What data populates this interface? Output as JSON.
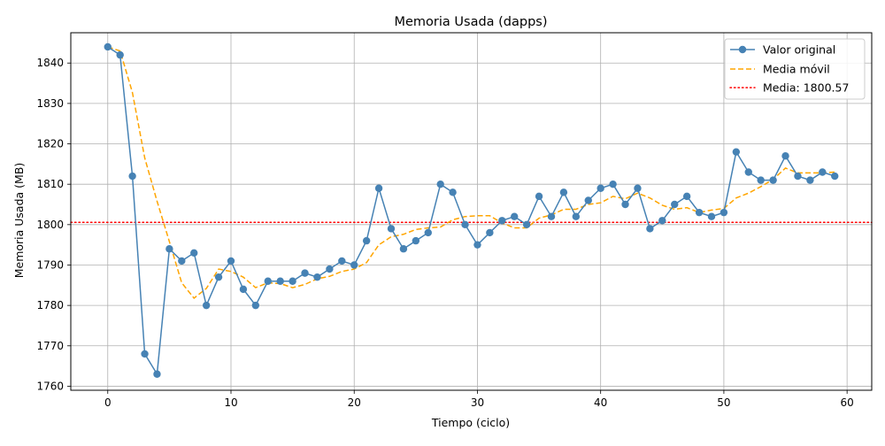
{
  "chart_data": {
    "type": "line",
    "title": "Memoria Usada (dapps)",
    "xlabel": "Tiempo (ciclo)",
    "ylabel": "Memoria Usada (MB)",
    "xlim": [
      -3,
      62
    ],
    "ylim": [
      1759,
      1847.5
    ],
    "xticks": [
      0,
      10,
      20,
      30,
      40,
      50,
      60
    ],
    "yticks": [
      1760,
      1770,
      1780,
      1790,
      1800,
      1810,
      1820,
      1830,
      1840
    ],
    "grid": true,
    "legend_position": "top-right",
    "x": [
      0,
      1,
      2,
      3,
      4,
      5,
      6,
      7,
      8,
      9,
      10,
      11,
      12,
      13,
      14,
      15,
      16,
      17,
      18,
      19,
      20,
      21,
      22,
      23,
      24,
      25,
      26,
      27,
      28,
      29,
      30,
      31,
      32,
      33,
      34,
      35,
      36,
      37,
      38,
      39,
      40,
      41,
      42,
      43,
      44,
      45,
      46,
      47,
      48,
      49,
      50,
      51,
      52,
      53,
      54,
      55,
      56,
      57,
      58,
      59
    ],
    "series": [
      {
        "name": "Valor original",
        "style": "line-marker",
        "color": "#4682b4",
        "values": [
          1844,
          1842,
          1812,
          1768,
          1763,
          1794,
          1791,
          1793,
          1780,
          1787,
          1791,
          1784,
          1780,
          1786,
          1786,
          1786,
          1788,
          1787,
          1789,
          1791,
          1790,
          1796,
          1809,
          1799,
          1794,
          1796,
          1798,
          1810,
          1808,
          1800,
          1795,
          1798,
          1801,
          1802,
          1800,
          1807,
          1802,
          1808,
          1802,
          1806,
          1809,
          1810,
          1805,
          1809,
          1799,
          1801,
          1805,
          1807,
          1803,
          1802,
          1803,
          1818,
          1813,
          1811,
          1811,
          1817,
          1812,
          1811,
          1813,
          1812
        ]
      },
      {
        "name": "Media móvil",
        "style": "dashed",
        "color": "#ffa500",
        "values": [
          1844,
          1843,
          1832.7,
          1816.5,
          1805.8,
          1795.8,
          1785.6,
          1781.8,
          1784.2,
          1789,
          1788.4,
          1787,
          1784.4,
          1785.6,
          1785.4,
          1784.4,
          1785.2,
          1786.6,
          1787.2,
          1788.4,
          1789,
          1790.6,
          1795,
          1797,
          1797.6,
          1798.8,
          1799.2,
          1799.4,
          1801.2,
          1802,
          1802.2,
          1802.2,
          1800.4,
          1799.2,
          1799.2,
          1801.6,
          1802.4,
          1803.8,
          1803.8,
          1805,
          1805.4,
          1807,
          1806.4,
          1807.8,
          1806.6,
          1804.8,
          1803.8,
          1804.2,
          1803,
          1803.6,
          1804,
          1806.6,
          1807.8,
          1809.4,
          1811.2,
          1814,
          1812.8,
          1812.8,
          1812.8,
          1813
        ]
      },
      {
        "name": "Media: 1800.57",
        "style": "hline-dotted",
        "color": "#ff0000",
        "y": 1800.57
      }
    ]
  }
}
